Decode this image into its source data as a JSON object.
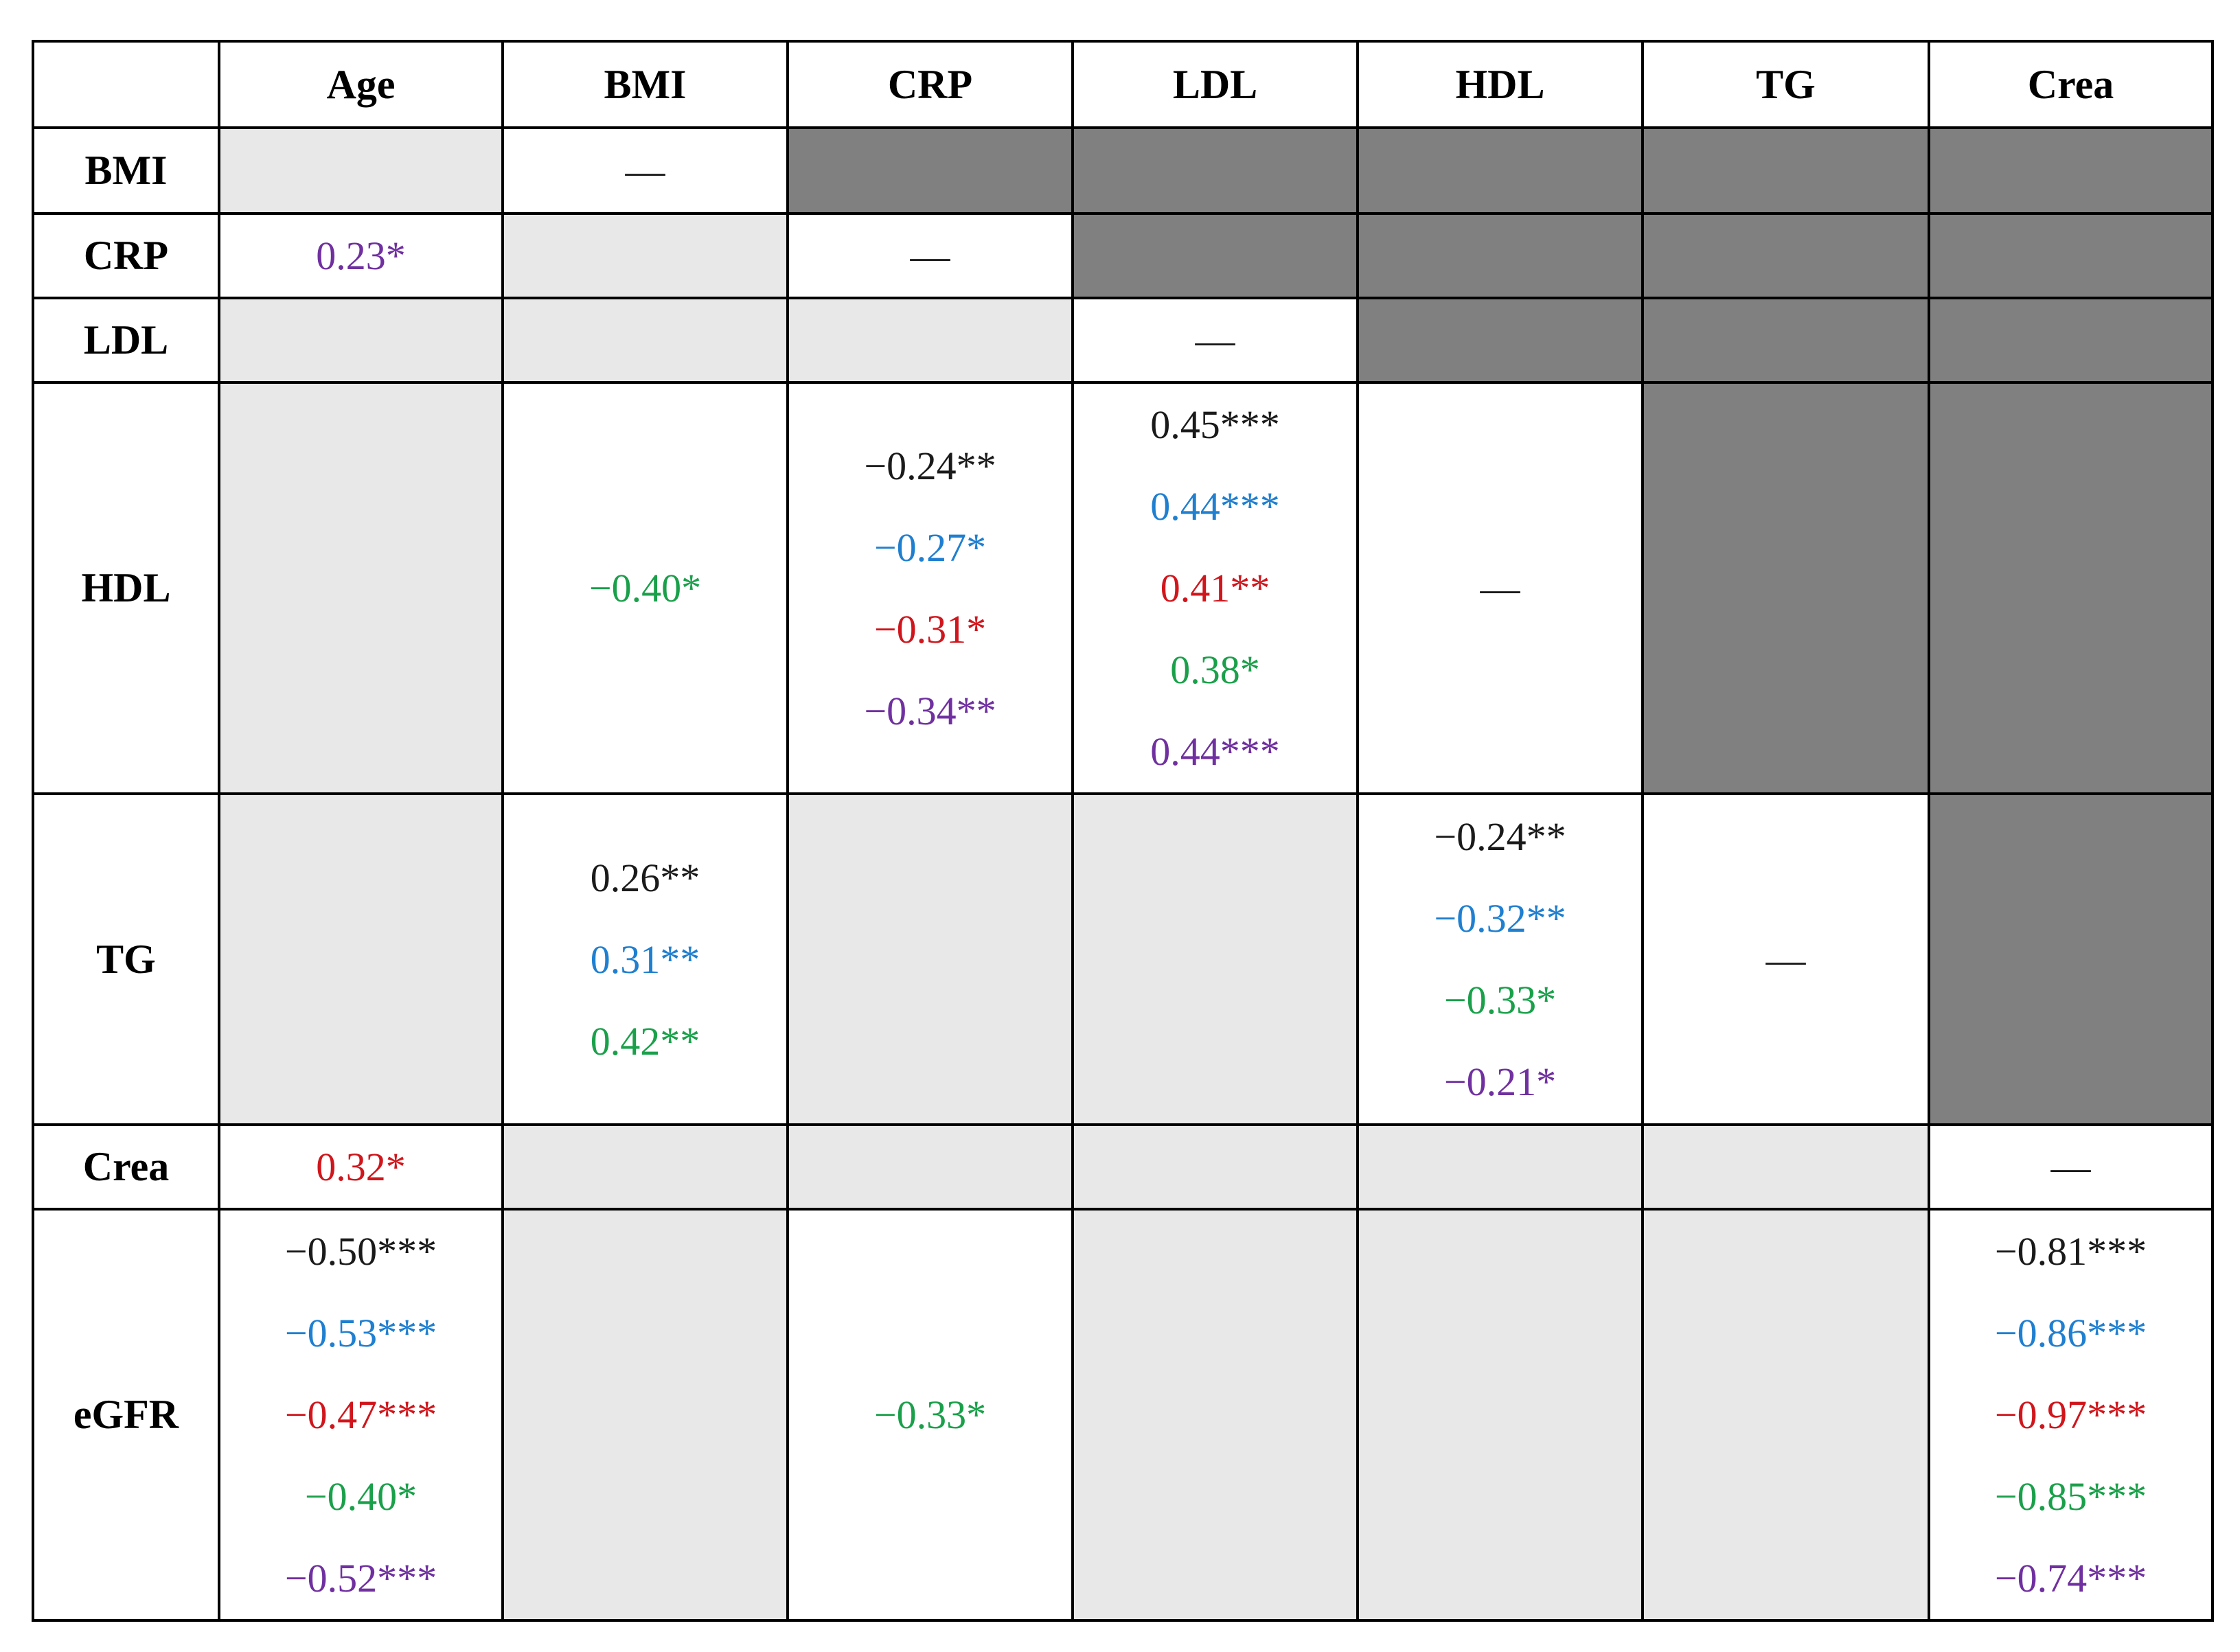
{
  "table": {
    "columns": [
      "Age",
      "BMI",
      "CRP",
      "LDL",
      "HDL",
      "TG",
      "Crea"
    ],
    "colors": {
      "black": "#1a1a1a",
      "blue": "#1f7fd0",
      "red": "#d0161c",
      "green": "#1aa04a",
      "purple": "#7030a0"
    },
    "rows": [
      {
        "label": "BMI",
        "cells": [
          [],
          [
            {
              "text": "—",
              "color": "black"
            }
          ],
          [],
          [],
          [],
          [],
          []
        ]
      },
      {
        "label": "CRP",
        "cells": [
          [
            {
              "text": "0.23*",
              "color": "purple"
            }
          ],
          [],
          [
            {
              "text": "—",
              "color": "black"
            }
          ],
          [],
          [],
          [],
          []
        ]
      },
      {
        "label": "LDL",
        "cells": [
          [],
          [],
          [],
          [
            {
              "text": "—",
              "color": "black"
            }
          ],
          [],
          [],
          []
        ]
      },
      {
        "label": "HDL",
        "cells": [
          [],
          [
            {
              "text": "−0.40*",
              "color": "green"
            }
          ],
          [
            {
              "text": "−0.24**",
              "color": "black"
            },
            {
              "text": "−0.27*",
              "color": "blue"
            },
            {
              "text": "−0.31*",
              "color": "red"
            },
            {
              "text": "−0.34**",
              "color": "purple"
            }
          ],
          [
            {
              "text": "0.45***",
              "color": "black"
            },
            {
              "text": "0.44***",
              "color": "blue"
            },
            {
              "text": "0.41**",
              "color": "red"
            },
            {
              "text": "0.38*",
              "color": "green"
            },
            {
              "text": "0.44***",
              "color": "purple"
            }
          ],
          [
            {
              "text": "—",
              "color": "black"
            }
          ],
          [],
          []
        ]
      },
      {
        "label": "TG",
        "cells": [
          [],
          [
            {
              "text": "0.26**",
              "color": "black"
            },
            {
              "text": "0.31**",
              "color": "blue"
            },
            {
              "text": "0.42**",
              "color": "green"
            }
          ],
          [],
          [],
          [
            {
              "text": "−0.24**",
              "color": "black"
            },
            {
              "text": "−0.32**",
              "color": "blue"
            },
            {
              "text": "−0.33*",
              "color": "green"
            },
            {
              "text": "−0.21*",
              "color": "purple"
            }
          ],
          [
            {
              "text": "—",
              "color": "black"
            }
          ],
          []
        ]
      },
      {
        "label": "Crea",
        "cells": [
          [
            {
              "text": "0.32*",
              "color": "red"
            }
          ],
          [],
          [],
          [],
          [],
          [],
          [
            {
              "text": "—",
              "color": "black"
            }
          ]
        ]
      },
      {
        "label": "eGFR",
        "cells": [
          [
            {
              "text": "−0.50***",
              "color": "black"
            },
            {
              "text": "−0.53***",
              "color": "blue"
            },
            {
              "text": "−0.47***",
              "color": "red"
            },
            {
              "text": "−0.40*",
              "color": "green"
            },
            {
              "text": "−0.52***",
              "color": "purple"
            }
          ],
          [],
          [
            {
              "text": "−0.33*",
              "color": "green"
            }
          ],
          [],
          [],
          [],
          [
            {
              "text": "−0.81***",
              "color": "black"
            },
            {
              "text": "−0.86***",
              "color": "blue"
            },
            {
              "text": "−0.97***",
              "color": "red"
            },
            {
              "text": "−0.85***",
              "color": "green"
            },
            {
              "text": "−0.74***",
              "color": "purple"
            }
          ]
        ]
      }
    ]
  }
}
